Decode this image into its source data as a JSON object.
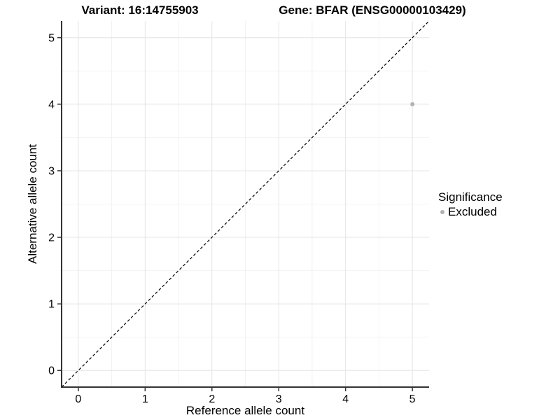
{
  "chart_data": {
    "type": "scatter",
    "title_left": "Variant: 16:14755903",
    "title_right": "Gene: BFAR (ENSG00000103429)",
    "xlabel": "Reference allele count",
    "ylabel": "Alternative allele count",
    "xlim": [
      -0.25,
      5.25
    ],
    "ylim": [
      -0.25,
      5.25
    ],
    "xticks": [
      0,
      1,
      2,
      3,
      4,
      5
    ],
    "yticks": [
      0,
      1,
      2,
      3,
      4,
      5
    ],
    "xminor": [
      0.5,
      1.5,
      2.5,
      3.5,
      4.5
    ],
    "yminor": [
      0.5,
      1.5,
      2.5,
      3.5,
      4.5
    ],
    "grid": "major+minor",
    "legend_position": "right",
    "series": [
      {
        "name": "Excluded",
        "color": "#b3b3b3",
        "marker": "circle",
        "points": [
          {
            "x": 5,
            "y": 4
          }
        ]
      }
    ],
    "reference_line": {
      "kind": "abline",
      "slope": 1,
      "intercept": 0,
      "linestyle": "dashed",
      "color": "#000000"
    },
    "legend": {
      "title": "Significance",
      "items": [
        {
          "label": "Excluded",
          "color": "#b3b3b3"
        }
      ]
    },
    "colors": {
      "background": "#ffffff",
      "grid_major": "#e4e4e4",
      "grid_minor": "#f2f2f2",
      "axis_line": "#333333",
      "tick": "#333333",
      "text": "#000000",
      "point": "#b3b3b3"
    }
  }
}
